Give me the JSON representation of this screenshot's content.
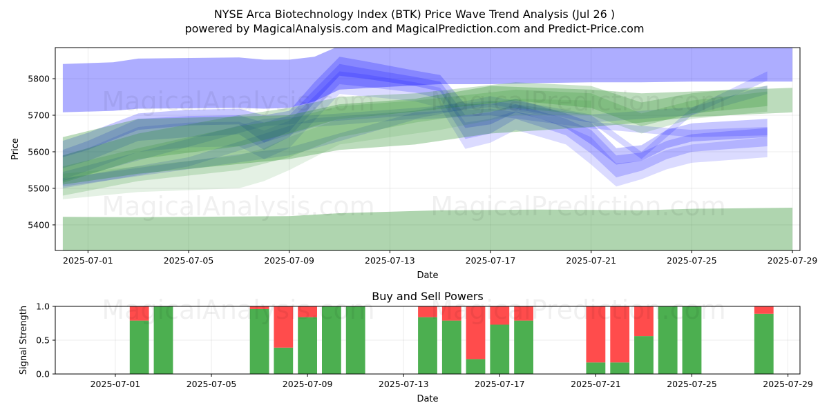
{
  "figure": {
    "title_line1": "NYSE Arca Biotechnology Index (BTK) Price Wave Trend Analysis (Jul 26 )",
    "title_line2": "powered by MagicalAnalysis.com and MagicalPrediction.com and Predict-Price.com",
    "watermarks": [
      "MagicalAnalysis.com",
      "MagicalPrediction.com"
    ]
  },
  "chart_data": [
    {
      "type": "area",
      "title": "",
      "xlabel": "Date",
      "ylabel": "Price",
      "x_ticks": [
        "2025-07-01",
        "2025-07-05",
        "2025-07-09",
        "2025-07-13",
        "2025-07-17",
        "2025-07-21",
        "2025-07-25",
        "2025-07-29"
      ],
      "y_ticks": [
        5400,
        5500,
        5600,
        5700,
        5800
      ],
      "xlim": [
        "2025-06-29.7",
        "2025-07-29.3"
      ],
      "ylim": [
        5330,
        5885
      ],
      "grid": true,
      "series": [
        {
          "color": "#0000ff",
          "opacity": 0.32,
          "dates": [
            "2025-06-30",
            "2025-07-02",
            "2025-07-03",
            "2025-07-07",
            "2025-07-08",
            "2025-07-09",
            "2025-07-10",
            "2025-07-11",
            "2025-07-13",
            "2025-07-15",
            "2025-07-17",
            "2025-07-19",
            "2025-07-21",
            "2025-07-23",
            "2025-07-25",
            "2025-07-29"
          ],
          "upper": [
            5840,
            5845,
            5855,
            5858,
            5852,
            5852,
            5860,
            5890,
            5890,
            5885,
            5885,
            5885,
            5885,
            5885,
            5885,
            5885
          ],
          "lower": [
            5708,
            5712,
            5718,
            5720,
            5718,
            5720,
            5738,
            5770,
            5778,
            5785,
            5785,
            5788,
            5790,
            5790,
            5792,
            5792
          ]
        },
        {
          "color": "#0000ff",
          "opacity": 0.22,
          "dates": [
            "2025-06-30",
            "2025-07-01",
            "2025-07-03",
            "2025-07-05",
            "2025-07-07",
            "2025-07-08",
            "2025-07-09",
            "2025-07-10",
            "2025-07-11",
            "2025-07-12",
            "2025-07-14",
            "2025-07-15",
            "2025-07-16",
            "2025-07-17",
            "2025-07-18",
            "2025-07-19",
            "2025-07-20",
            "2025-07-21",
            "2025-07-22",
            "2025-07-23",
            "2025-07-24",
            "2025-07-25",
            "2025-07-28"
          ],
          "upper": [
            5630,
            5652,
            5705,
            5715,
            5718,
            5700,
            5712,
            5790,
            5860,
            5848,
            5822,
            5810,
            5730,
            5730,
            5745,
            5725,
            5705,
            5680,
            5610,
            5618,
            5660,
            5678,
            5690
          ],
          "lower": [
            5585,
            5605,
            5660,
            5672,
            5675,
            5625,
            5655,
            5735,
            5808,
            5800,
            5780,
            5765,
            5665,
            5675,
            5708,
            5690,
            5665,
            5620,
            5565,
            5575,
            5610,
            5628,
            5640
          ]
        },
        {
          "color": "#0000ff",
          "opacity": 0.18,
          "dates": [
            "2025-06-30",
            "2025-07-01",
            "2025-07-03",
            "2025-07-05",
            "2025-07-07",
            "2025-07-08",
            "2025-07-09",
            "2025-07-10",
            "2025-07-11",
            "2025-07-12",
            "2025-07-14",
            "2025-07-15",
            "2025-07-16",
            "2025-07-17",
            "2025-07-18",
            "2025-07-19",
            "2025-07-20",
            "2025-07-21",
            "2025-07-22",
            "2025-07-23",
            "2025-07-24",
            "2025-07-25",
            "2025-07-28"
          ],
          "upper": [
            5605,
            5630,
            5690,
            5698,
            5700,
            5680,
            5700,
            5770,
            5840,
            5828,
            5805,
            5792,
            5700,
            5708,
            5730,
            5710,
            5690,
            5660,
            5590,
            5598,
            5630,
            5648,
            5665
          ],
          "lower": [
            5555,
            5575,
            5630,
            5640,
            5648,
            5605,
            5640,
            5715,
            5785,
            5778,
            5762,
            5745,
            5635,
            5650,
            5690,
            5668,
            5645,
            5595,
            5530,
            5548,
            5580,
            5600,
            5615
          ]
        },
        {
          "color": "#0000ff",
          "opacity": 0.14,
          "dates": [
            "2025-06-30",
            "2025-07-01",
            "2025-07-03",
            "2025-07-05",
            "2025-07-07",
            "2025-07-08",
            "2025-07-09",
            "2025-07-10",
            "2025-07-11",
            "2025-07-12",
            "2025-07-14",
            "2025-07-15",
            "2025-07-16",
            "2025-07-17",
            "2025-07-18",
            "2025-07-19",
            "2025-07-20",
            "2025-07-21",
            "2025-07-22",
            "2025-07-23",
            "2025-07-24",
            "2025-07-25",
            "2025-07-28"
          ],
          "upper": [
            5590,
            5610,
            5668,
            5680,
            5682,
            5658,
            5685,
            5752,
            5820,
            5812,
            5790,
            5775,
            5680,
            5690,
            5712,
            5690,
            5670,
            5640,
            5568,
            5575,
            5605,
            5620,
            5640
          ],
          "lower": [
            5525,
            5548,
            5600,
            5612,
            5615,
            5580,
            5610,
            5685,
            5758,
            5752,
            5738,
            5720,
            5608,
            5625,
            5660,
            5640,
            5620,
            5565,
            5505,
            5525,
            5552,
            5570,
            5585
          ]
        },
        {
          "color": "#0000ff",
          "opacity": 0.16,
          "dates": [
            "2025-06-30",
            "2025-07-09",
            "2025-07-14",
            "2025-07-17",
            "2025-07-21",
            "2025-07-25",
            "2025-07-28"
          ],
          "upper": [
            5528,
            5612,
            5708,
            5718,
            5682,
            5660,
            5668
          ],
          "lower": [
            5505,
            5590,
            5688,
            5700,
            5664,
            5640,
            5645
          ]
        },
        {
          "color": "#0000ff",
          "opacity": 0.16,
          "dates": [
            "2025-06-30",
            "2025-07-08",
            "2025-07-14",
            "2025-07-17",
            "2025-07-21",
            "2025-07-23",
            "2025-07-25",
            "2025-07-28"
          ],
          "upper": [
            5545,
            5690,
            5720,
            5740,
            5700,
            5600,
            5720,
            5820
          ],
          "lower": [
            5520,
            5670,
            5700,
            5722,
            5680,
            5580,
            5700,
            5795
          ]
        },
        {
          "color": "#0000ff",
          "opacity": 0.16,
          "dates": [
            "2025-06-30",
            "2025-07-05",
            "2025-07-10",
            "2025-07-14",
            "2025-07-17",
            "2025-07-21",
            "2025-07-25",
            "2025-07-28"
          ],
          "upper": [
            5525,
            5585,
            5692,
            5712,
            5752,
            5702,
            5722,
            5782
          ],
          "lower": [
            5500,
            5560,
            5668,
            5690,
            5730,
            5680,
            5700,
            5758
          ]
        },
        {
          "color": "#228b22",
          "opacity": 0.36,
          "dates": [
            "2025-06-30",
            "2025-07-03",
            "2025-07-09",
            "2025-07-11",
            "2025-07-15",
            "2025-07-19",
            "2025-07-23",
            "2025-07-25",
            "2025-07-29"
          ],
          "upper": [
            5422,
            5421,
            5424,
            5432,
            5440,
            5442,
            5440,
            5444,
            5447
          ],
          "lower": [
            5330,
            5330,
            5330,
            5330,
            5330,
            5330,
            5330,
            5330,
            5330
          ]
        },
        {
          "color": "#228b22",
          "opacity": 0.3,
          "dates": [
            "2025-06-30",
            "2025-07-03",
            "2025-07-09",
            "2025-07-11",
            "2025-07-14",
            "2025-07-17",
            "2025-07-21",
            "2025-07-23",
            "2025-07-25",
            "2025-07-29"
          ],
          "upper": [
            5640,
            5690,
            5700,
            5730,
            5745,
            5780,
            5770,
            5760,
            5765,
            5775
          ],
          "lower": [
            5510,
            5540,
            5580,
            5605,
            5620,
            5650,
            5668,
            5680,
            5695,
            5708
          ]
        },
        {
          "color": "#228b22",
          "opacity": 0.24,
          "dates": [
            "2025-06-30",
            "2025-07-03",
            "2025-07-07",
            "2025-07-09",
            "2025-07-11",
            "2025-07-14",
            "2025-07-18",
            "2025-07-21",
            "2025-07-23",
            "2025-07-25",
            "2025-07-28"
          ],
          "upper": [
            5590,
            5650,
            5700,
            5720,
            5750,
            5760,
            5790,
            5780,
            5735,
            5760,
            5780
          ],
          "lower": [
            5515,
            5580,
            5615,
            5650,
            5690,
            5710,
            5740,
            5720,
            5670,
            5705,
            5725
          ]
        },
        {
          "color": "#228b22",
          "opacity": 0.18,
          "dates": [
            "2025-06-30",
            "2025-07-03",
            "2025-07-07",
            "2025-07-09",
            "2025-07-11",
            "2025-07-14",
            "2025-07-18",
            "2025-07-21",
            "2025-07-23",
            "2025-07-25",
            "2025-07-28"
          ],
          "upper": [
            5560,
            5610,
            5670,
            5690,
            5725,
            5740,
            5770,
            5760,
            5705,
            5740,
            5765
          ],
          "lower": [
            5480,
            5520,
            5550,
            5585,
            5640,
            5680,
            5720,
            5700,
            5650,
            5690,
            5710
          ]
        },
        {
          "color": "#228b22",
          "opacity": 0.12,
          "dates": [
            "2025-06-30",
            "2025-07-03",
            "2025-07-07",
            "2025-07-08",
            "2025-07-09",
            "2025-07-11",
            "2025-07-15",
            "2025-07-18",
            "2025-07-21"
          ],
          "upper": [
            5540,
            5560,
            5590,
            5610,
            5640,
            5690,
            5720,
            5745,
            5740
          ],
          "lower": [
            5470,
            5490,
            5500,
            5520,
            5550,
            5620,
            5660,
            5700,
            5700
          ]
        }
      ]
    },
    {
      "type": "bar",
      "title": "Buy and Sell Powers",
      "xlabel": "Date",
      "ylabel": "Signal Strength",
      "x_ticks": [
        "2025-07-01",
        "2025-07-05",
        "2025-07-09",
        "2025-07-13",
        "2025-07-17",
        "2025-07-21",
        "2025-07-25",
        "2025-07-29"
      ],
      "y_ticks": [
        0.0,
        0.5,
        1.0
      ],
      "ylim": [
        0,
        1
      ],
      "grid": true,
      "colors": {
        "buy": "#4caf50",
        "sell": "#ff4c4c"
      },
      "categories": [
        "2025-07-02",
        "2025-07-03",
        "2025-07-07",
        "2025-07-08",
        "2025-07-09",
        "2025-07-10",
        "2025-07-11",
        "2025-07-14",
        "2025-07-15",
        "2025-07-16",
        "2025-07-17",
        "2025-07-18",
        "2025-07-21",
        "2025-07-22",
        "2025-07-23",
        "2025-07-24",
        "2025-07-25",
        "2025-07-28"
      ],
      "buy": [
        0.79,
        1.0,
        0.96,
        0.39,
        0.84,
        1.0,
        1.0,
        0.84,
        0.79,
        0.22,
        0.73,
        0.79,
        0.17,
        0.17,
        0.56,
        1.0,
        1.0,
        0.89
      ],
      "sell": [
        0.21,
        0.0,
        0.04,
        0.61,
        0.16,
        0.0,
        0.0,
        0.16,
        0.21,
        0.78,
        0.27,
        0.21,
        0.83,
        0.83,
        0.44,
        0.0,
        0.0,
        0.11
      ]
    }
  ]
}
